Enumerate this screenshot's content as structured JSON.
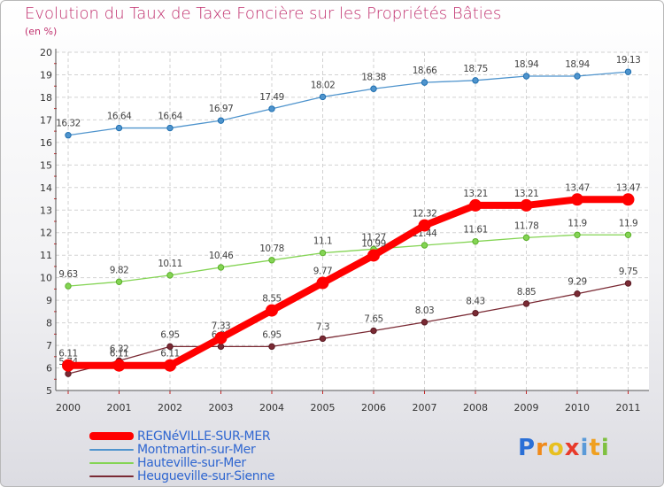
{
  "chart_data": {
    "type": "line",
    "title": "Evolution du Taux de Taxe Foncière sur les Propriétés Bâties",
    "subtitle": "(en %)",
    "ylim": [
      5,
      20
    ],
    "yticks": [
      5,
      6,
      7,
      8,
      9,
      10,
      11,
      12,
      13,
      14,
      15,
      16,
      17,
      18,
      19,
      20
    ],
    "categories": [
      "2000",
      "2001",
      "2002",
      "2003",
      "2004",
      "2005",
      "2006",
      "2007",
      "2008",
      "2009",
      "2010",
      "2011"
    ],
    "series": [
      {
        "name": "Montmartin-sur-Mer",
        "color": "#4f94cd",
        "values": [
          16.32,
          16.64,
          16.64,
          16.97,
          17.49,
          18.02,
          18.38,
          18.66,
          18.75,
          18.94,
          18.94,
          19.13
        ],
        "labels": [
          "16.32",
          "16.64",
          "16.64",
          "16.97",
          "17.49",
          "18.02",
          "18.38",
          "18.66",
          "18.75",
          "18.94",
          "18.94",
          "19.13"
        ]
      },
      {
        "name": "Hauteville-sur-Mer",
        "color": "#84d454",
        "values": [
          9.63,
          9.82,
          10.11,
          10.46,
          10.78,
          11.1,
          11.27,
          11.44,
          11.61,
          11.78,
          11.9,
          11.9
        ],
        "labels": [
          "9.63",
          "9.82",
          "10.11",
          "10.46",
          "10.78",
          "11.1",
          "11.27",
          "11.44",
          "11.61",
          "11.78",
          "11.9",
          "11.9"
        ]
      },
      {
        "name": "Heugueville-sur-Sienne",
        "color": "#7a2a34",
        "values": [
          5.74,
          6.32,
          6.95,
          6.95,
          6.95,
          7.3,
          7.65,
          8.03,
          8.43,
          8.85,
          9.29,
          9.75
        ],
        "labels": [
          "5.74",
          "6.32",
          "6.95",
          "6.95",
          "6.95",
          "7.3",
          "7.65",
          "8.03",
          "8.43",
          "8.85",
          "9.29",
          "9.75"
        ]
      },
      {
        "name": "REGNéVILLE-SUR-MER",
        "color": "#ff0000",
        "values": [
          6.11,
          6.11,
          6.11,
          7.33,
          8.55,
          9.77,
          10.99,
          12.32,
          13.21,
          13.21,
          13.47,
          13.47
        ],
        "labels": [
          "6.11",
          "6.11",
          "6.11",
          "7.33",
          "8.55",
          "9.77",
          "10.99",
          "12.32",
          "13.21",
          "13.21",
          "13.47",
          "13.47"
        ]
      }
    ],
    "legend": [
      {
        "name": "REGNéVILLE-SUR-MER",
        "color": "#ff0000"
      },
      {
        "name": "Montmartin-sur-Mer",
        "color": "#4f94cd"
      },
      {
        "name": "Hauteville-sur-Mer",
        "color": "#84d454"
      },
      {
        "name": "Heugueville-sur-Sienne",
        "color": "#7a2a34"
      }
    ]
  },
  "logo": {
    "letters": [
      "P",
      "r",
      "o",
      "x",
      "i",
      "t",
      "i"
    ],
    "colors": [
      "#2a6fd6",
      "#f08a1a",
      "#e8c020",
      "#e83a2a",
      "#5a9ad8",
      "#f0a020",
      "#7fc040"
    ]
  }
}
